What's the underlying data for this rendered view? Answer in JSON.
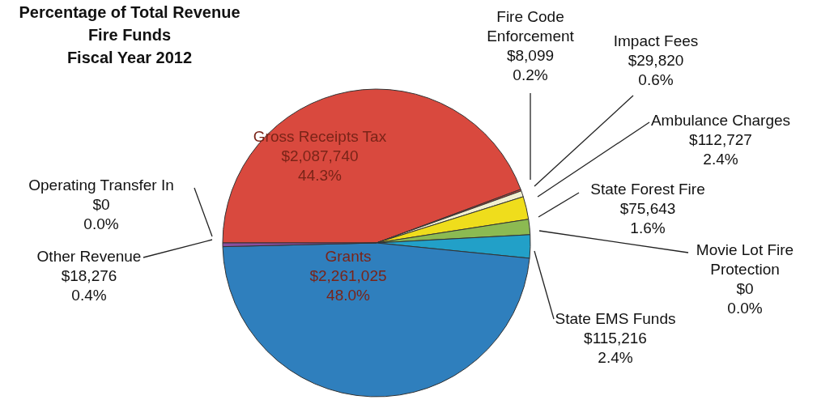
{
  "chart_data": {
    "type": "pie",
    "title": "Percentage of Total Revenue\nFire Funds\nFiscal Year 2012",
    "categories": [
      "Gross Receipts Tax",
      "Fire Code Enforcement",
      "Impact Fees",
      "Ambulance Charges",
      "State Forest Fire",
      "Movie Lot Fire Protection",
      "State EMS Funds",
      "Grants",
      "Other Revenue",
      "Operating Transfer In"
    ],
    "values": [
      2087740,
      8099,
      29820,
      112727,
      75643,
      0,
      115216,
      2261025,
      18276,
      0
    ],
    "value_labels": [
      "$2,087,740\n44.3%",
      "$8,099\n0.2%",
      "$29,820\n0.6%",
      "$112,727\n2.4%",
      "$75,643\n1.6%",
      "$0\n0.0%",
      "$115,216\n2.4%",
      "$2,261,025\n48.0%",
      "$18,276\n0.4%",
      "$0\n0.0%"
    ],
    "colors": [
      "#d9493e",
      "#c8463c",
      "#f2efd0",
      "#efdd1c",
      "#8cba52",
      "#3aa0a0",
      "#22a0c8",
      "#2f7fbd",
      "#8a4f9e",
      "#6a3c8a"
    ]
  }
}
